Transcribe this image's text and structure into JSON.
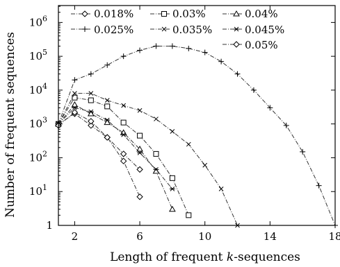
{
  "chart_data": {
    "type": "line",
    "xlabel": "Length of frequent ",
    "xlabel_italic": "k",
    "xlabel_suffix": "-sequences",
    "ylabel": "Number of frequent sequences",
    "xlim": [
      1,
      18
    ],
    "ylim_log10": [
      0,
      6.5
    ],
    "log_y": true,
    "x_ticks": [
      2,
      6,
      10,
      14,
      18
    ],
    "y_ticks": [
      {
        "exp": 0,
        "label": "1"
      },
      {
        "exp": 1,
        "label": "10",
        "sup": "1"
      },
      {
        "exp": 2,
        "label": "10",
        "sup": "2"
      },
      {
        "exp": 3,
        "label": "10",
        "sup": "3"
      },
      {
        "exp": 4,
        "label": "10",
        "sup": "4"
      },
      {
        "exp": 5,
        "label": "10",
        "sup": "5"
      },
      {
        "exp": 6,
        "label": "10",
        "sup": "6"
      }
    ],
    "legend_position": "top",
    "series": [
      {
        "name": "0.018%",
        "marker": "diamond",
        "x": [
          1,
          2,
          3,
          4,
          5,
          6
        ],
        "y": [
          1000,
          2000,
          900,
          400,
          80,
          7
        ]
      },
      {
        "name": "0.025%",
        "marker": "plus",
        "x": [
          1,
          2,
          3,
          4,
          5,
          6,
          7,
          8,
          9,
          10,
          11,
          12,
          13,
          14,
          15,
          16,
          17,
          18
        ],
        "y": [
          1000,
          20000,
          30000,
          55000,
          100000,
          150000,
          200000,
          200000,
          170000,
          130000,
          70000,
          30000,
          10000,
          3000,
          900,
          150,
          15,
          1
        ]
      },
      {
        "name": "0.03%",
        "marker": "square",
        "x": [
          1,
          2,
          3,
          4,
          5,
          6,
          7,
          8,
          9
        ],
        "y": [
          1000,
          6000,
          5000,
          3300,
          1100,
          450,
          130,
          25,
          2
        ]
      },
      {
        "name": "0.035%",
        "marker": "cross",
        "x": [
          1,
          2,
          3,
          4,
          5,
          6,
          7,
          8,
          9,
          10,
          11,
          12
        ],
        "y": [
          1000,
          8000,
          8000,
          5000,
          3500,
          2500,
          1400,
          600,
          250,
          60,
          12,
          1
        ]
      },
      {
        "name": "0.04%",
        "marker": "triangle",
        "x": [
          1,
          2,
          3,
          4,
          5,
          6,
          7,
          8
        ],
        "y": [
          1000,
          3700,
          2000,
          1100,
          550,
          180,
          40,
          3
        ]
      },
      {
        "name": "0.045%",
        "marker": "star",
        "x": [
          1,
          2,
          3,
          4,
          5,
          6,
          7,
          8
        ],
        "y": [
          1000,
          3000,
          2300,
          1300,
          480,
          140,
          45,
          12
        ]
      },
      {
        "name": "0.05%",
        "marker": "diamond",
        "x": [
          1,
          2,
          3,
          4,
          5,
          6
        ],
        "y": [
          900,
          2200,
          1200,
          400,
          130,
          45
        ]
      }
    ]
  }
}
